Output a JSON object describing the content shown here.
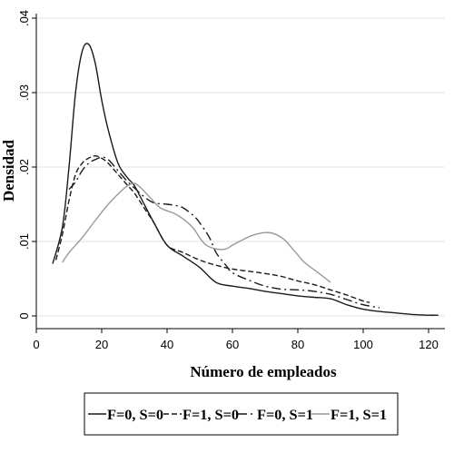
{
  "chart_data": {
    "type": "line",
    "xlabel": "Número de empleados",
    "ylabel": "Densidad",
    "xlim": [
      0,
      125
    ],
    "ylim": [
      0,
      0.04
    ],
    "xticks": [
      0,
      20,
      40,
      60,
      80,
      100,
      120
    ],
    "xtick_labels": [
      "0",
      "20",
      "40",
      "60",
      "80",
      "100",
      "120"
    ],
    "yticks": [
      0,
      0.01,
      0.02,
      0.03,
      0.04
    ],
    "ytick_labels": [
      "0",
      ".01",
      ".02",
      ".03",
      ".04"
    ],
    "legend_position": "bottom",
    "series": [
      {
        "name": "F=0, S=0",
        "color": "#1a1a1a",
        "dash": "solid",
        "x": [
          5,
          8,
          10,
          12,
          14,
          16,
          18,
          20,
          22,
          25,
          28,
          30,
          33,
          36,
          40,
          45,
          50,
          55,
          60,
          65,
          70,
          75,
          80,
          85,
          90,
          95,
          100,
          105,
          110,
          115,
          120,
          123
        ],
        "y": [
          0.007,
          0.012,
          0.02,
          0.03,
          0.0355,
          0.0365,
          0.034,
          0.029,
          0.025,
          0.0205,
          0.0185,
          0.0175,
          0.015,
          0.0125,
          0.0095,
          0.008,
          0.0065,
          0.0045,
          0.004,
          0.0037,
          0.0033,
          0.003,
          0.0027,
          0.0025,
          0.0023,
          0.0015,
          0.0009,
          0.0006,
          0.0004,
          0.0002,
          0.0001,
          0.0001
        ]
      },
      {
        "name": "F=1, S=0",
        "color": "#1a1a1a",
        "dash": "6,3",
        "x": [
          6,
          8,
          10,
          12,
          14,
          16,
          18,
          20,
          22,
          25,
          28,
          30,
          33,
          36,
          40,
          45,
          50,
          55,
          60,
          65,
          70,
          75,
          80,
          85,
          90,
          95,
          100,
          102
        ],
        "y": [
          0.0075,
          0.011,
          0.0155,
          0.019,
          0.0205,
          0.0212,
          0.0215,
          0.0212,
          0.0205,
          0.019,
          0.0175,
          0.0165,
          0.0145,
          0.0125,
          0.0095,
          0.0085,
          0.0075,
          0.0068,
          0.0063,
          0.006,
          0.0057,
          0.0053,
          0.0047,
          0.0042,
          0.0035,
          0.0028,
          0.002,
          0.0018
        ]
      },
      {
        "name": "F=0, S=1",
        "color": "#1a1a1a",
        "dash": "10,4,2,4",
        "x": [
          10,
          12,
          14,
          16,
          18,
          20,
          22,
          25,
          28,
          30,
          33,
          36,
          40,
          43,
          45,
          48,
          50,
          53,
          55,
          58,
          60,
          65,
          70,
          75,
          80,
          85,
          90,
          95,
          100,
          105
        ],
        "y": [
          0.017,
          0.018,
          0.0195,
          0.0205,
          0.021,
          0.0213,
          0.021,
          0.0195,
          0.018,
          0.0172,
          0.016,
          0.0152,
          0.015,
          0.0148,
          0.0145,
          0.0135,
          0.0125,
          0.0105,
          0.0085,
          0.0068,
          0.0058,
          0.0048,
          0.004,
          0.0036,
          0.0035,
          0.0033,
          0.0029,
          0.0022,
          0.0015,
          0.0011
        ]
      },
      {
        "name": "F=1, S=1",
        "color": "#9a9a9a",
        "dash": "solid",
        "x": [
          8,
          10,
          14,
          18,
          22,
          26,
          28,
          30,
          32,
          35,
          38,
          42,
          45,
          48,
          50,
          52,
          55,
          58,
          60,
          63,
          66,
          70,
          73,
          76,
          78,
          80,
          82,
          85,
          88,
          90
        ],
        "y": [
          0.0072,
          0.0085,
          0.0105,
          0.0128,
          0.015,
          0.0168,
          0.0175,
          0.0178,
          0.0172,
          0.0158,
          0.0145,
          0.0138,
          0.013,
          0.0118,
          0.0105,
          0.0095,
          0.009,
          0.009,
          0.0095,
          0.0102,
          0.0108,
          0.0112,
          0.011,
          0.0102,
          0.0092,
          0.0082,
          0.0072,
          0.0062,
          0.0052,
          0.0045
        ]
      }
    ]
  }
}
